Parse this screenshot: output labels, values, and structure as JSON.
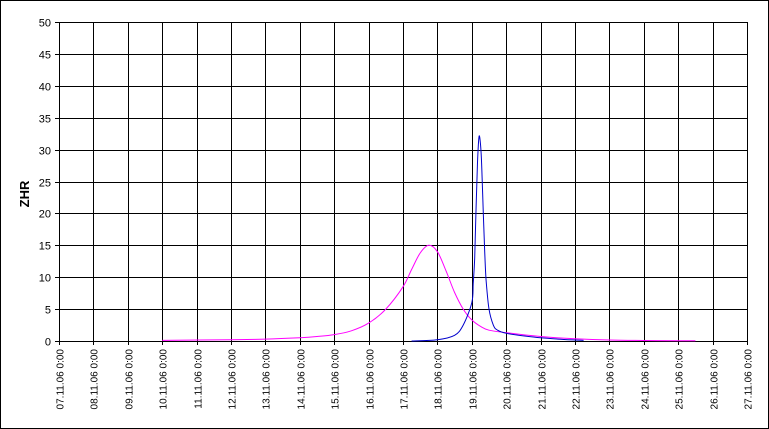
{
  "chart_data": {
    "type": "line",
    "title": "",
    "xlabel": "",
    "ylabel": "ZHR",
    "ylim": [
      0,
      50
    ],
    "yticks": [
      0,
      5,
      10,
      15,
      20,
      25,
      30,
      35,
      40,
      45,
      50
    ],
    "xlim": [
      "07.11.06 0:00",
      "27.11.06 0:00"
    ],
    "xticks": [
      "07.11.06 0:00",
      "08.11.06 0:00",
      "09.11.06 0:00",
      "10.11.06 0:00",
      "11.11.06 0:00",
      "12.11.06 0:00",
      "13.11.06 0:00",
      "14.11.06 0:00",
      "15.11.06 0:00",
      "16.11.06 0:00",
      "17.11.06 0:00",
      "18.11.06 0:00",
      "19.11.06 0:00",
      "20.11.06 0:00",
      "21.11.06 0:00",
      "22.11.06 0:00",
      "23.11.06 0:00",
      "24.11.06 0:00",
      "25.11.06 0:00",
      "26.11.06 0:00",
      "27.11.06 0:00"
    ],
    "grid": true,
    "legend": "none",
    "series": [
      {
        "color": "#ff00ff",
        "x": [
          "10.11.06 0:00",
          "12.11.06 0:00",
          "13.11.06 0:00",
          "14.11.06 0:00",
          "14.11.06 12:00",
          "15.11.06 0:00",
          "15.11.06 12:00",
          "16.11.06 0:00",
          "16.11.06 12:00",
          "17.11.06 0:00",
          "17.11.06 6:00",
          "17.11.06 12:00",
          "17.11.06 18:00",
          "18.11.06 0:00",
          "18.11.06 6:00",
          "18.11.06 12:00",
          "18.11.06 18:00",
          "19.11.06 0:00",
          "19.11.06 6:00",
          "19.11.06 12:00",
          "20.11.06 0:00",
          "21.11.06 0:00",
          "22.11.06 0:00",
          "23.11.06 0:00",
          "24.11.06 0:00",
          "25.11.06 0:00",
          "25.11.06 12:00"
        ],
        "y": [
          0.1,
          0.2,
          0.3,
          0.5,
          0.7,
          1.0,
          1.6,
          2.8,
          5.0,
          8.5,
          11.2,
          13.8,
          15.0,
          14.0,
          11.0,
          7.6,
          5.0,
          3.3,
          2.3,
          1.7,
          1.3,
          0.7,
          0.35,
          0.15,
          0.08,
          0.05,
          0.04
        ]
      },
      {
        "color": "#0000cc",
        "x": [
          "17.11.06 6:00",
          "18.11.06 0:00",
          "18.11.06 12:00",
          "18.11.06 18:00",
          "19.11.06 0:00",
          "19.11.06 1:00",
          "19.11.06 2:00",
          "19.11.06 3:00",
          "19.11.06 4:00",
          "19.11.06 5:00",
          "19.11.06 6:00",
          "19.11.06 7:00",
          "19.11.06 8:00",
          "19.11.06 9:00",
          "19.11.06 10:00",
          "19.11.06 12:00",
          "19.11.06 15:00",
          "19.11.06 18:00",
          "20.11.06 0:00",
          "20.11.06 12:00",
          "21.11.06 0:00",
          "21.11.06 12:00",
          "22.11.06 0:00",
          "22.11.06 6:00"
        ],
        "y": [
          0.0,
          0.2,
          0.9,
          2.5,
          6.0,
          9.0,
          13.0,
          21.0,
          28.0,
          32.0,
          31.0,
          27.0,
          20.0,
          14.0,
          9.5,
          5.0,
          2.5,
          1.7,
          1.2,
          0.8,
          0.5,
          0.3,
          0.15,
          0.1
        ]
      }
    ]
  }
}
